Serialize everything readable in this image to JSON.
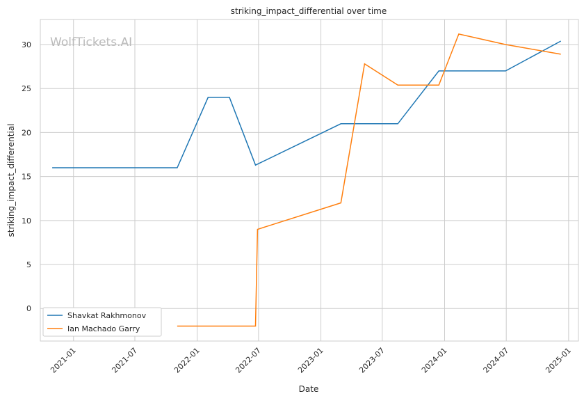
{
  "chart_data": {
    "type": "line",
    "title": "striking_impact_differential over time",
    "xlabel": "Date",
    "ylabel": "striking_impact_differential",
    "watermark": "WolfTickets.AI",
    "xlim": [
      "2020-09-25",
      "2025-01-30"
    ],
    "ylim": [
      -3.7,
      32.85
    ],
    "x_ticks": [
      "2021-01",
      "2021-07",
      "2022-01",
      "2022-07",
      "2023-01",
      "2023-07",
      "2024-01",
      "2024-07",
      "2025-01"
    ],
    "y_ticks": [
      0,
      5,
      10,
      15,
      20,
      25,
      30
    ],
    "grid": true,
    "legend_placement": "lower-left",
    "series": [
      {
        "name": "Shavkat Rakhmonov",
        "color": "#1f77b4",
        "x": [
          "2020-10-30",
          "2021-11-03",
          "2022-02-02",
          "2022-04-06",
          "2022-06-22",
          "2023-03-01",
          "2023-08-16",
          "2023-12-15",
          "2024-06-29",
          "2024-12-09"
        ],
        "values": [
          16,
          16,
          24,
          24,
          16.3,
          21,
          21,
          27,
          27,
          30.4
        ]
      },
      {
        "name": "Ian Machado Garry",
        "color": "#ff7f0e",
        "x": [
          "2021-11-03",
          "2022-06-22",
          "2022-06-28",
          "2023-03-01",
          "2023-05-10",
          "2023-08-16",
          "2023-12-15",
          "2024-02-12",
          "2024-06-29",
          "2024-12-09"
        ],
        "values": [
          -2,
          -2,
          9,
          12,
          27.8,
          25.4,
          25.4,
          31.2,
          30,
          28.9
        ]
      }
    ]
  }
}
